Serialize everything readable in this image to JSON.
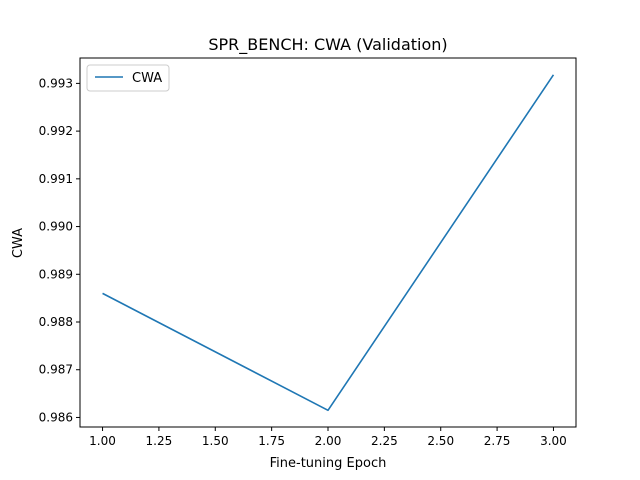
{
  "chart_data": {
    "type": "line",
    "title": "SPR_BENCH: CWA (Validation)",
    "xlabel": "Fine-tuning Epoch",
    "ylabel": "CWA",
    "x": [
      1.0,
      2.0,
      3.0
    ],
    "series": [
      {
        "name": "CWA",
        "values": [
          0.9886,
          0.98615,
          0.99318
        ],
        "color": "#1f77b4"
      }
    ],
    "xlim": [
      0.9,
      3.1
    ],
    "ylim": [
      0.9858,
      0.993532
    ],
    "xticks": [
      1.0,
      1.25,
      1.5,
      1.75,
      2.0,
      2.25,
      2.5,
      2.75,
      3.0
    ],
    "xtick_labels": [
      "1.00",
      "1.25",
      "1.50",
      "1.75",
      "2.00",
      "2.25",
      "2.50",
      "2.75",
      "3.00"
    ],
    "yticks": [
      0.986,
      0.987,
      0.988,
      0.989,
      0.99,
      0.991,
      0.992,
      0.993
    ],
    "ytick_labels": [
      "0.986",
      "0.987",
      "0.988",
      "0.989",
      "0.990",
      "0.991",
      "0.992",
      "0.993"
    ],
    "grid": false,
    "legend_position": "top-left"
  }
}
